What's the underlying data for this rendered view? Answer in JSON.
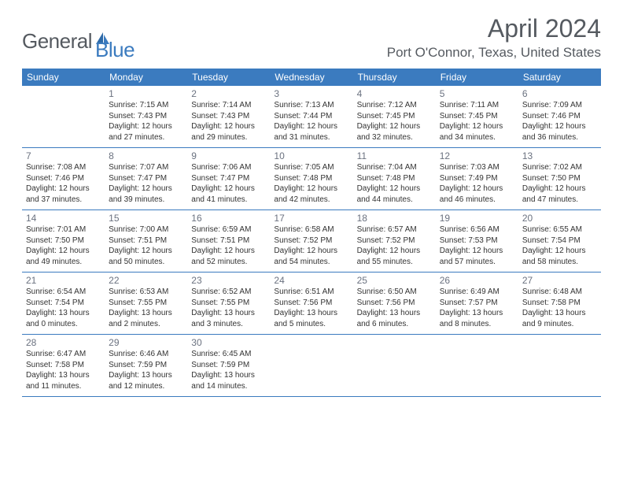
{
  "logo": {
    "general": "General",
    "blue": "Blue"
  },
  "title": "April 2024",
  "location": "Port O'Connor, Texas, United States",
  "weekdays": [
    "Sunday",
    "Monday",
    "Tuesday",
    "Wednesday",
    "Thursday",
    "Friday",
    "Saturday"
  ],
  "colors": {
    "header_bg": "#3b7bbf",
    "header_text": "#ffffff",
    "title_text": "#555a60",
    "body_text": "#333333",
    "daynum_text": "#6b7280",
    "border": "#3b7bbf"
  },
  "fonts": {
    "title_size": 32,
    "location_size": 17,
    "weekday_size": 12,
    "daynum_size": 12,
    "info_size": 10
  },
  "weeks": [
    [
      null,
      {
        "d": "1",
        "sr": "7:15 AM",
        "ss": "7:43 PM",
        "dlh": "12",
        "dlm": "27"
      },
      {
        "d": "2",
        "sr": "7:14 AM",
        "ss": "7:43 PM",
        "dlh": "12",
        "dlm": "29"
      },
      {
        "d": "3",
        "sr": "7:13 AM",
        "ss": "7:44 PM",
        "dlh": "12",
        "dlm": "31"
      },
      {
        "d": "4",
        "sr": "7:12 AM",
        "ss": "7:45 PM",
        "dlh": "12",
        "dlm": "32"
      },
      {
        "d": "5",
        "sr": "7:11 AM",
        "ss": "7:45 PM",
        "dlh": "12",
        "dlm": "34"
      },
      {
        "d": "6",
        "sr": "7:09 AM",
        "ss": "7:46 PM",
        "dlh": "12",
        "dlm": "36"
      }
    ],
    [
      {
        "d": "7",
        "sr": "7:08 AM",
        "ss": "7:46 PM",
        "dlh": "12",
        "dlm": "37"
      },
      {
        "d": "8",
        "sr": "7:07 AM",
        "ss": "7:47 PM",
        "dlh": "12",
        "dlm": "39"
      },
      {
        "d": "9",
        "sr": "7:06 AM",
        "ss": "7:47 PM",
        "dlh": "12",
        "dlm": "41"
      },
      {
        "d": "10",
        "sr": "7:05 AM",
        "ss": "7:48 PM",
        "dlh": "12",
        "dlm": "42"
      },
      {
        "d": "11",
        "sr": "7:04 AM",
        "ss": "7:48 PM",
        "dlh": "12",
        "dlm": "44"
      },
      {
        "d": "12",
        "sr": "7:03 AM",
        "ss": "7:49 PM",
        "dlh": "12",
        "dlm": "46"
      },
      {
        "d": "13",
        "sr": "7:02 AM",
        "ss": "7:50 PM",
        "dlh": "12",
        "dlm": "47"
      }
    ],
    [
      {
        "d": "14",
        "sr": "7:01 AM",
        "ss": "7:50 PM",
        "dlh": "12",
        "dlm": "49"
      },
      {
        "d": "15",
        "sr": "7:00 AM",
        "ss": "7:51 PM",
        "dlh": "12",
        "dlm": "50"
      },
      {
        "d": "16",
        "sr": "6:59 AM",
        "ss": "7:51 PM",
        "dlh": "12",
        "dlm": "52"
      },
      {
        "d": "17",
        "sr": "6:58 AM",
        "ss": "7:52 PM",
        "dlh": "12",
        "dlm": "54"
      },
      {
        "d": "18",
        "sr": "6:57 AM",
        "ss": "7:52 PM",
        "dlh": "12",
        "dlm": "55"
      },
      {
        "d": "19",
        "sr": "6:56 AM",
        "ss": "7:53 PM",
        "dlh": "12",
        "dlm": "57"
      },
      {
        "d": "20",
        "sr": "6:55 AM",
        "ss": "7:54 PM",
        "dlh": "12",
        "dlm": "58"
      }
    ],
    [
      {
        "d": "21",
        "sr": "6:54 AM",
        "ss": "7:54 PM",
        "dlh": "13",
        "dlm": "0"
      },
      {
        "d": "22",
        "sr": "6:53 AM",
        "ss": "7:55 PM",
        "dlh": "13",
        "dlm": "2"
      },
      {
        "d": "23",
        "sr": "6:52 AM",
        "ss": "7:55 PM",
        "dlh": "13",
        "dlm": "3"
      },
      {
        "d": "24",
        "sr": "6:51 AM",
        "ss": "7:56 PM",
        "dlh": "13",
        "dlm": "5"
      },
      {
        "d": "25",
        "sr": "6:50 AM",
        "ss": "7:56 PM",
        "dlh": "13",
        "dlm": "6"
      },
      {
        "d": "26",
        "sr": "6:49 AM",
        "ss": "7:57 PM",
        "dlh": "13",
        "dlm": "8"
      },
      {
        "d": "27",
        "sr": "6:48 AM",
        "ss": "7:58 PM",
        "dlh": "13",
        "dlm": "9"
      }
    ],
    [
      {
        "d": "28",
        "sr": "6:47 AM",
        "ss": "7:58 PM",
        "dlh": "13",
        "dlm": "11"
      },
      {
        "d": "29",
        "sr": "6:46 AM",
        "ss": "7:59 PM",
        "dlh": "13",
        "dlm": "12"
      },
      {
        "d": "30",
        "sr": "6:45 AM",
        "ss": "7:59 PM",
        "dlh": "13",
        "dlm": "14"
      },
      null,
      null,
      null,
      null
    ]
  ]
}
